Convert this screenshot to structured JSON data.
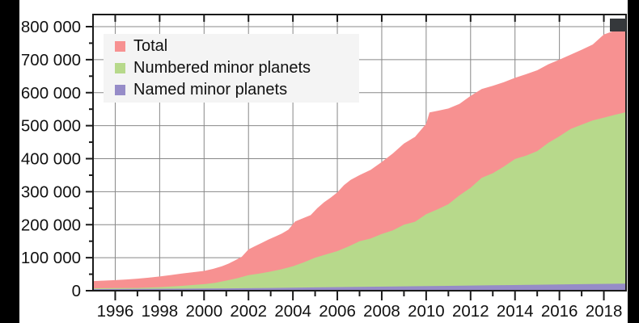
{
  "chart_data": {
    "type": "area",
    "title": "",
    "xlabel": "",
    "ylabel": "",
    "x_range": [
      1995,
      2019
    ],
    "y_range": [
      0,
      836700
    ],
    "grid": true,
    "legend_position": "top-left",
    "y_major_ticks": [
      {
        "v": 0,
        "label": "0"
      },
      {
        "v": 100000,
        "label": "100 000"
      },
      {
        "v": 200000,
        "label": "200 000"
      },
      {
        "v": 300000,
        "label": "300 000"
      },
      {
        "v": 400000,
        "label": "400 000"
      },
      {
        "v": 500000,
        "label": "500 000"
      },
      {
        "v": 600000,
        "label": "600 000"
      },
      {
        "v": 700000,
        "label": "700 000"
      },
      {
        "v": 800000,
        "label": "800 000"
      }
    ],
    "y_minor_ticks": [
      50000,
      150000,
      250000,
      350000,
      450000,
      550000,
      650000,
      750000
    ],
    "x_major_ticks": [
      {
        "v": 1996,
        "label": "1996"
      },
      {
        "v": 1998,
        "label": "1998"
      },
      {
        "v": 2000,
        "label": "2000"
      },
      {
        "v": 2002,
        "label": "2002"
      },
      {
        "v": 2004,
        "label": "2004"
      },
      {
        "v": 2006,
        "label": "2006"
      },
      {
        "v": 2008,
        "label": "2008"
      },
      {
        "v": 2010,
        "label": "2010"
      },
      {
        "v": 2012,
        "label": "2012"
      },
      {
        "v": 2014,
        "label": "2014"
      },
      {
        "v": 2016,
        "label": "2016"
      },
      {
        "v": 2018,
        "label": "2018"
      }
    ],
    "x_minor_ticks": [
      1997,
      1999,
      2001,
      2003,
      2005,
      2007,
      2009,
      2011,
      2013,
      2015,
      2017
    ],
    "series": [
      {
        "name": "Total",
        "color": "#f79191",
        "points": [
          [
            1995.0,
            29000
          ],
          [
            1995.5,
            30500
          ],
          [
            1996.0,
            32000
          ],
          [
            1996.5,
            34000
          ],
          [
            1997.0,
            36500
          ],
          [
            1997.5,
            39500
          ],
          [
            1998.0,
            43000
          ],
          [
            1998.5,
            47500
          ],
          [
            1999.0,
            52000
          ],
          [
            1999.5,
            56000
          ],
          [
            2000.0,
            60000
          ],
          [
            2000.4,
            66000
          ],
          [
            2000.8,
            74000
          ],
          [
            2001.1,
            82000
          ],
          [
            2001.4,
            92000
          ],
          [
            2001.7,
            103000
          ],
          [
            2002.0,
            125000
          ],
          [
            2002.3,
            135000
          ],
          [
            2002.6,
            145000
          ],
          [
            2002.9,
            155000
          ],
          [
            2003.2,
            164000
          ],
          [
            2003.5,
            173000
          ],
          [
            2003.8,
            185000
          ],
          [
            2004.1,
            210000
          ],
          [
            2004.4,
            218000
          ],
          [
            2004.8,
            229000
          ],
          [
            2005.1,
            250000
          ],
          [
            2005.4,
            268000
          ],
          [
            2005.7,
            282000
          ],
          [
            2006.0,
            298000
          ],
          [
            2006.3,
            320000
          ],
          [
            2006.6,
            336000
          ],
          [
            2007.0,
            350000
          ],
          [
            2007.5,
            366000
          ],
          [
            2008.0,
            390000
          ],
          [
            2008.5,
            416000
          ],
          [
            2009.0,
            446000
          ],
          [
            2009.5,
            466000
          ],
          [
            2010.0,
            506000
          ],
          [
            2010.15,
            540000
          ],
          [
            2010.6,
            546000
          ],
          [
            2011.0,
            552000
          ],
          [
            2011.5,
            566000
          ],
          [
            2012.0,
            590000
          ],
          [
            2012.5,
            611000
          ],
          [
            2013.0,
            621000
          ],
          [
            2013.5,
            632000
          ],
          [
            2014.0,
            645000
          ],
          [
            2014.5,
            656000
          ],
          [
            2015.0,
            668000
          ],
          [
            2015.5,
            686000
          ],
          [
            2016.0,
            700000
          ],
          [
            2016.5,
            715000
          ],
          [
            2017.0,
            730000
          ],
          [
            2017.5,
            746000
          ],
          [
            2018.0,
            776000
          ],
          [
            2018.4,
            786000
          ],
          [
            2018.7,
            791000
          ],
          [
            2019.0,
            796000
          ]
        ]
      },
      {
        "name": "Numbered minor planets",
        "color": "#b7d98b",
        "points": [
          [
            1995.0,
            7300
          ],
          [
            1996.0,
            7900
          ],
          [
            1997.0,
            8400
          ],
          [
            1998.0,
            10700
          ],
          [
            1999.0,
            14800
          ],
          [
            2000.0,
            19900
          ],
          [
            2000.5,
            24000
          ],
          [
            2001.0,
            30700
          ],
          [
            2001.5,
            38000
          ],
          [
            2002.0,
            47000
          ],
          [
            2002.5,
            52000
          ],
          [
            2003.0,
            58000
          ],
          [
            2003.5,
            65000
          ],
          [
            2004.0,
            74000
          ],
          [
            2004.5,
            86000
          ],
          [
            2005.0,
            100000
          ],
          [
            2005.5,
            110000
          ],
          [
            2006.0,
            120000
          ],
          [
            2006.5,
            134000
          ],
          [
            2007.0,
            150000
          ],
          [
            2007.5,
            158000
          ],
          [
            2008.0,
            172000
          ],
          [
            2008.5,
            183000
          ],
          [
            2009.0,
            200000
          ],
          [
            2009.5,
            209000
          ],
          [
            2010.0,
            232000
          ],
          [
            2010.5,
            246000
          ],
          [
            2011.0,
            262000
          ],
          [
            2011.5,
            289000
          ],
          [
            2012.0,
            312000
          ],
          [
            2012.5,
            342000
          ],
          [
            2013.0,
            356000
          ],
          [
            2013.5,
            376000
          ],
          [
            2014.0,
            399000
          ],
          [
            2014.5,
            409000
          ],
          [
            2015.0,
            423000
          ],
          [
            2015.5,
            448000
          ],
          [
            2016.0,
            468000
          ],
          [
            2016.5,
            490000
          ],
          [
            2017.0,
            503000
          ],
          [
            2017.5,
            516000
          ],
          [
            2018.0,
            524000
          ],
          [
            2018.5,
            533000
          ],
          [
            2019.0,
            541000
          ]
        ]
      },
      {
        "name": "Named minor planets",
        "color": "#968cc8",
        "points": [
          [
            1995.0,
            4900
          ],
          [
            1997.0,
            5400
          ],
          [
            1999.0,
            6200
          ],
          [
            2001.0,
            7000
          ],
          [
            2003.0,
            8400
          ],
          [
            2005.0,
            10000
          ],
          [
            2007.0,
            11600
          ],
          [
            2009.0,
            13200
          ],
          [
            2011.0,
            14800
          ],
          [
            2013.0,
            16400
          ],
          [
            2015.0,
            18000
          ],
          [
            2017.0,
            19700
          ],
          [
            2019.0,
            21500
          ]
        ]
      }
    ]
  },
  "colors": {
    "surround": "#000000",
    "panel": "#ffffff",
    "frame": "#1a1a1a",
    "grid": "#888888",
    "text": "#111111",
    "legend_background": "#f4f4f4",
    "artifact": "#35383b"
  }
}
